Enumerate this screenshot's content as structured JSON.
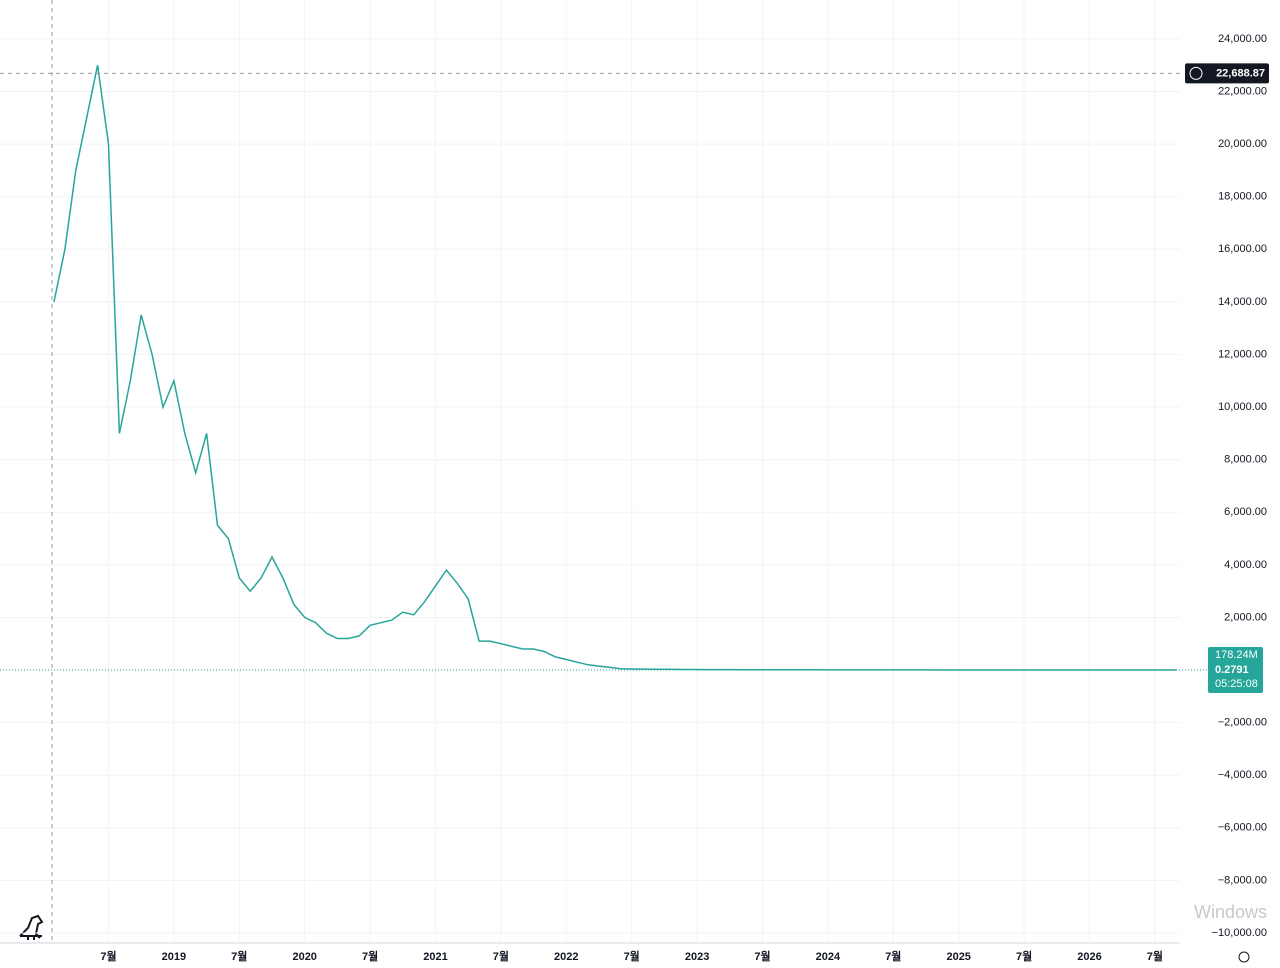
{
  "chart_data": {
    "type": "line",
    "categories": [
      null,
      null,
      null,
      null,
      null,
      "7월",
      null,
      null,
      null,
      null,
      null,
      "2019",
      null,
      null,
      null,
      null,
      null,
      "7월",
      null,
      null,
      null,
      null,
      null,
      "2020",
      null,
      null,
      null,
      null,
      null,
      "7월",
      null,
      null,
      null,
      null,
      null,
      "2021",
      null,
      null,
      null,
      null,
      null,
      "7월",
      null,
      null,
      null,
      null,
      null,
      "2022",
      null,
      null,
      null,
      null,
      null,
      "7월",
      null,
      null,
      null,
      null,
      null,
      "2023",
      null,
      null,
      null,
      null,
      null,
      "7월",
      null,
      null,
      null,
      null,
      null,
      "2024",
      null,
      null,
      null,
      null,
      null,
      "7월",
      null,
      null,
      null,
      null,
      null,
      "2025",
      null,
      null,
      null,
      null,
      null,
      "7월",
      null,
      null,
      null,
      null,
      null,
      "2026",
      null,
      null,
      null,
      null,
      null,
      "7월",
      null,
      null
    ],
    "series": [
      {
        "color": "#26a69a",
        "values": [
          14000,
          16000,
          19000,
          21000,
          23000,
          20000,
          9000,
          11000,
          13500,
          12000,
          10000,
          11000,
          9000,
          7500,
          9000,
          5500,
          5000,
          3500,
          3000,
          3500,
          4300,
          3500,
          2500,
          2000,
          1800,
          1400,
          1200,
          1200,
          1300,
          1700,
          1800,
          1900,
          2200,
          2100,
          2600,
          3200,
          3800,
          3300,
          2700,
          1100,
          1100,
          1000,
          900,
          800,
          800,
          700,
          500,
          400,
          300,
          200,
          150,
          100,
          50,
          40,
          35,
          30,
          28,
          25,
          22,
          20,
          18,
          16,
          15,
          14,
          13,
          12,
          11,
          10,
          9,
          8,
          8,
          7,
          7,
          6,
          6,
          5,
          5,
          5,
          4,
          4,
          4,
          3,
          3,
          3,
          3,
          2.5,
          2.5,
          2,
          2,
          2,
          1.8,
          1.6,
          1.5,
          1.4,
          1.3,
          1.2,
          1.1,
          1,
          0.9,
          0.8,
          0.7,
          0.5,
          0.4,
          0.2791
        ]
      }
    ],
    "ylim": [
      -10380,
      25480
    ],
    "yticks": [
      {
        "value": -10000,
        "label": "−10,000.00"
      },
      {
        "value": -8000,
        "label": "−8,000.00"
      },
      {
        "value": -6000,
        "label": "−6,000.00"
      },
      {
        "value": -4000,
        "label": "−4,000.00"
      },
      {
        "value": -2000,
        "label": "−2,000.00"
      },
      {
        "value": 2000,
        "label": "2,000.00"
      },
      {
        "value": 4000,
        "label": "4,000.00"
      },
      {
        "value": 6000,
        "label": "6,000.00"
      },
      {
        "value": 8000,
        "label": "8,000.00"
      },
      {
        "value": 10000,
        "label": "10,000.00"
      },
      {
        "value": 12000,
        "label": "12,000.00"
      },
      {
        "value": 14000,
        "label": "14,000.00"
      },
      {
        "value": 16000,
        "label": "16,000.00"
      },
      {
        "value": 18000,
        "label": "18,000.00"
      },
      {
        "value": 20000,
        "label": "20,000.00"
      },
      {
        "value": 22000,
        "label": "22,000.00"
      },
      {
        "value": 24000,
        "label": "24,000.00"
      }
    ],
    "grid": true,
    "crosshair_price": {
      "value": 22688.87,
      "label": "22,688.87"
    },
    "last_price": {
      "value": 0.2791,
      "label": "0.2791"
    },
    "volume_label": "178.24M",
    "countdown": "05:25:08",
    "watermark": "Windows"
  }
}
